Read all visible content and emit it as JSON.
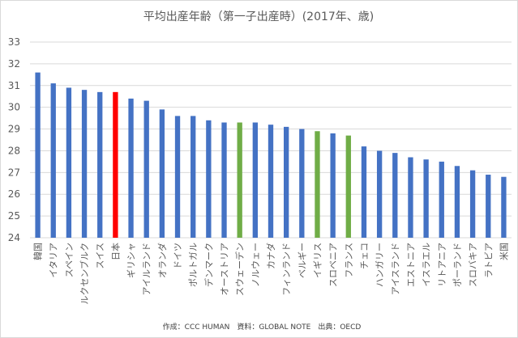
{
  "chart_data": {
    "type": "bar",
    "title": "平均出産年齢（第一子出産時）(2017年、歳)",
    "categories": [
      "韓国",
      "イタリア",
      "スペイン",
      "ルクセンブルク",
      "スイス",
      "日本",
      "ギリシャ",
      "アイルランド",
      "オランダ",
      "ドイツ",
      "ポルトガル",
      "デンマーク",
      "オーストリア",
      "スウェーデン",
      "ノルウェー",
      "カナダ",
      "フィンランド",
      "ベルギー",
      "イギリス",
      "スロベニア",
      "フランス",
      "チェコ",
      "ハンガリー",
      "アイスランド",
      "エストニア",
      "イスラエル",
      "リトアニア",
      "ポーランド",
      "スロバキア",
      "ラトビア",
      "米国"
    ],
    "values": [
      31.6,
      31.1,
      30.9,
      30.8,
      30.7,
      30.7,
      30.4,
      30.3,
      29.9,
      29.6,
      29.6,
      29.4,
      29.3,
      29.3,
      29.3,
      29.2,
      29.1,
      29.0,
      28.9,
      28.8,
      28.7,
      28.2,
      28.0,
      27.9,
      27.7,
      27.6,
      27.5,
      27.3,
      27.1,
      26.9,
      26.8
    ],
    "colors": [
      "#4472c4",
      "#4472c4",
      "#4472c4",
      "#4472c4",
      "#4472c4",
      "#ff0000",
      "#4472c4",
      "#4472c4",
      "#4472c4",
      "#4472c4",
      "#4472c4",
      "#4472c4",
      "#4472c4",
      "#70ad47",
      "#4472c4",
      "#4472c4",
      "#4472c4",
      "#4472c4",
      "#70ad47",
      "#4472c4",
      "#70ad47",
      "#4472c4",
      "#4472c4",
      "#4472c4",
      "#4472c4",
      "#4472c4",
      "#4472c4",
      "#4472c4",
      "#4472c4",
      "#4472c4",
      "#4472c4"
    ],
    "ylim": [
      24,
      33
    ],
    "yticks": [
      24,
      25,
      26,
      27,
      28,
      29,
      30,
      31,
      32,
      33
    ],
    "grid": true,
    "legend": "none",
    "gridColor": "#d9d9d9"
  },
  "source": "作成：CCC HUMAN　資料：GLOBAL NOTE　出典：OECD"
}
